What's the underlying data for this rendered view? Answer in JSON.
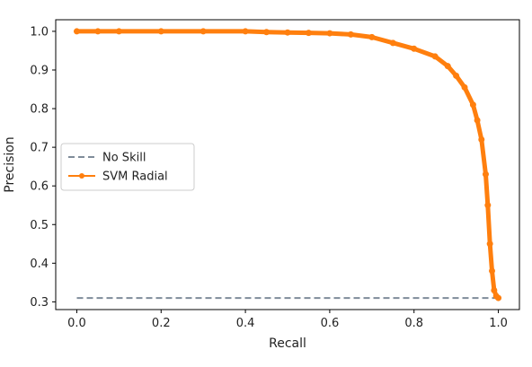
{
  "chart_data": {
    "type": "line",
    "xlabel": "Recall",
    "ylabel": "Precision",
    "xlim": [
      -0.05,
      1.05
    ],
    "ylim": [
      0.28,
      1.03
    ],
    "xticks": [
      0.0,
      0.2,
      0.4,
      0.6,
      0.8,
      1.0
    ],
    "xtick_labels": [
      "0.0",
      "0.2",
      "0.4",
      "0.6",
      "0.8",
      "1.0"
    ],
    "yticks": [
      0.3,
      0.4,
      0.5,
      0.6,
      0.7,
      0.8,
      0.9,
      1.0
    ],
    "ytick_labels": [
      "0.3",
      "0.4",
      "0.5",
      "0.6",
      "0.7",
      "0.8",
      "0.9",
      "1.0"
    ],
    "grid": false,
    "legend_position": "center-left",
    "series": [
      {
        "name": "No Skill",
        "color": "#7f8c9a",
        "style": "dashed",
        "x": [
          0.0,
          1.0
        ],
        "y": [
          0.31,
          0.31
        ]
      },
      {
        "name": "SVM Radial",
        "color": "#ff7f0e",
        "style": "solid-marker",
        "x": [
          0.0,
          0.05,
          0.1,
          0.2,
          0.3,
          0.4,
          0.45,
          0.5,
          0.55,
          0.6,
          0.65,
          0.7,
          0.75,
          0.8,
          0.85,
          0.88,
          0.9,
          0.92,
          0.94,
          0.95,
          0.96,
          0.97,
          0.975,
          0.98,
          0.985,
          0.99,
          0.995,
          1.0
        ],
        "y": [
          1.0,
          1.0,
          1.0,
          1.0,
          1.0,
          1.0,
          0.998,
          0.997,
          0.996,
          0.995,
          0.992,
          0.985,
          0.97,
          0.955,
          0.935,
          0.91,
          0.885,
          0.855,
          0.81,
          0.77,
          0.72,
          0.63,
          0.55,
          0.45,
          0.38,
          0.33,
          0.315,
          0.31
        ]
      }
    ]
  }
}
